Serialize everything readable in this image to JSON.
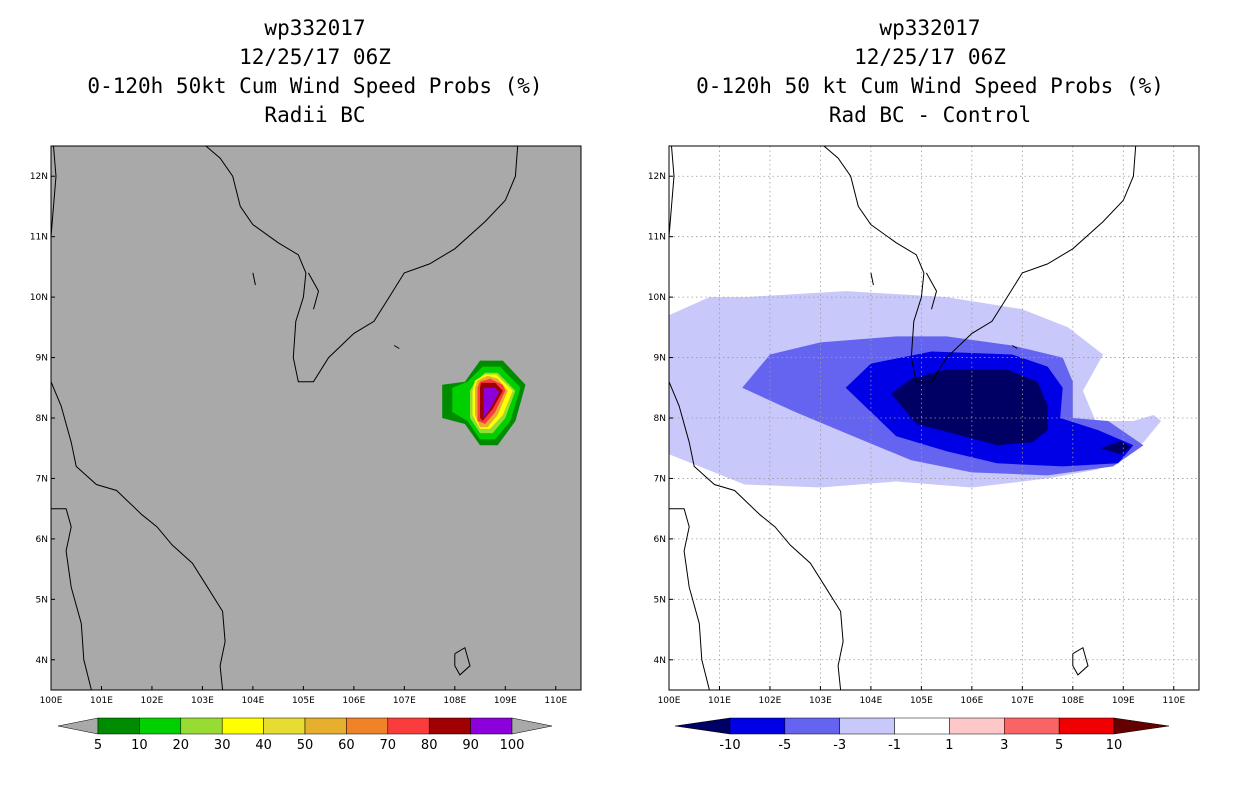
{
  "colors": {
    "left_background": "#a9a9a9",
    "right_background": "#ffffff",
    "coast": "#000000",
    "grid": "#9a9a9a"
  },
  "chart_data": [
    {
      "type": "heatmap",
      "panel": "left",
      "title_lines": [
        "wp332017",
        "12/25/17 06Z",
        "0-120h 50kt Cum Wind Speed Probs (%)",
        "Radii BC"
      ],
      "xlim": [
        100,
        110.5
      ],
      "ylim": [
        3.5,
        12.5
      ],
      "x_ticks": [
        100,
        101,
        102,
        103,
        104,
        105,
        106,
        107,
        108,
        109,
        110
      ],
      "x_tick_labels": [
        "100E",
        "101E",
        "102E",
        "103E",
        "104E",
        "105E",
        "106E",
        "107E",
        "108E",
        "109E",
        "110E"
      ],
      "y_ticks": [
        4,
        5,
        6,
        7,
        8,
        9,
        10,
        11,
        12
      ],
      "y_tick_labels": [
        "4N",
        "5N",
        "6N",
        "7N",
        "8N",
        "9N",
        "10N",
        "11N",
        "12N"
      ],
      "grid": false,
      "colorbar": {
        "labels": [
          "5",
          "10",
          "20",
          "30",
          "40",
          "50",
          "60",
          "70",
          "80",
          "90",
          "100"
        ],
        "colors": [
          "#008c00",
          "#00d000",
          "#96dc32",
          "#ffff00",
          "#e6dc32",
          "#e6af2d",
          "#f08228",
          "#fa3c3c",
          "#a00000",
          "#8c00dc"
        ],
        "under_color": "#a9a9a9",
        "over_color": "#a9a9a9"
      },
      "contours": [
        {
          "level": 5,
          "color": "#008c00",
          "points": [
            [
              108.2,
              8.6
            ],
            [
              108.5,
              8.95
            ],
            [
              108.95,
              8.95
            ],
            [
              109.4,
              8.55
            ],
            [
              109.2,
              7.95
            ],
            [
              108.85,
              7.55
            ],
            [
              108.5,
              7.55
            ],
            [
              108.2,
              7.9
            ],
            [
              107.75,
              8.0
            ],
            [
              107.75,
              8.55
            ]
          ]
        },
        {
          "level": 10,
          "color": "#00d000",
          "points": [
            [
              108.25,
              8.6
            ],
            [
              108.55,
              8.85
            ],
            [
              108.9,
              8.85
            ],
            [
              109.3,
              8.5
            ],
            [
              109.1,
              7.95
            ],
            [
              108.8,
              7.65
            ],
            [
              108.5,
              7.65
            ],
            [
              108.25,
              7.95
            ],
            [
              107.95,
              8.1
            ],
            [
              107.95,
              8.5
            ]
          ]
        },
        {
          "level": 20,
          "color": "#96dc32",
          "points": [
            [
              108.4,
              8.6
            ],
            [
              108.6,
              8.75
            ],
            [
              108.85,
              8.75
            ],
            [
              109.2,
              8.45
            ],
            [
              109.0,
              8.0
            ],
            [
              108.75,
              7.75
            ],
            [
              108.5,
              7.75
            ],
            [
              108.3,
              8.0
            ],
            [
              108.3,
              8.45
            ]
          ]
        },
        {
          "level": 30,
          "color": "#ffff00",
          "points": [
            [
              108.4,
              8.62
            ],
            [
              108.6,
              8.72
            ],
            [
              108.82,
              8.72
            ],
            [
              109.15,
              8.45
            ],
            [
              108.95,
              8.05
            ],
            [
              108.7,
              7.82
            ],
            [
              108.5,
              7.82
            ],
            [
              108.35,
              8.05
            ],
            [
              108.35,
              8.45
            ]
          ]
        },
        {
          "level": 50,
          "color": "#e6af2d",
          "points": [
            [
              108.45,
              8.62
            ],
            [
              108.65,
              8.7
            ],
            [
              108.85,
              8.65
            ],
            [
              109.05,
              8.45
            ],
            [
              108.85,
              8.05
            ],
            [
              108.65,
              7.85
            ],
            [
              108.5,
              7.85
            ],
            [
              108.4,
              8.05
            ],
            [
              108.4,
              8.5
            ]
          ]
        },
        {
          "level": 70,
          "color": "#fa3c3c",
          "points": [
            [
              108.5,
              8.6
            ],
            [
              108.7,
              8.65
            ],
            [
              108.95,
              8.55
            ],
            [
              109.0,
              8.45
            ],
            [
              108.8,
              8.1
            ],
            [
              108.6,
              7.9
            ],
            [
              108.45,
              7.95
            ],
            [
              108.45,
              8.5
            ]
          ]
        },
        {
          "level": 80,
          "color": "#a00000",
          "points": [
            [
              108.52,
              8.58
            ],
            [
              108.8,
              8.58
            ],
            [
              108.95,
              8.45
            ],
            [
              108.75,
              8.15
            ],
            [
              108.55,
              7.95
            ],
            [
              108.5,
              8.0
            ],
            [
              108.5,
              8.5
            ]
          ]
        },
        {
          "level": 90,
          "color": "#8c00dc",
          "points": [
            [
              108.57,
              8.5
            ],
            [
              108.8,
              8.5
            ],
            [
              108.88,
              8.43
            ],
            [
              108.7,
              8.15
            ],
            [
              108.57,
              8.0
            ]
          ]
        }
      ]
    },
    {
      "type": "heatmap",
      "panel": "right",
      "title_lines": [
        "wp332017",
        "12/25/17 06Z",
        "0-120h 50 kt Cum Wind Speed Probs (%)",
        "Rad BC - Control"
      ],
      "xlim": [
        100,
        110.5
      ],
      "ylim": [
        3.5,
        12.5
      ],
      "x_ticks": [
        100,
        101,
        102,
        103,
        104,
        105,
        106,
        107,
        108,
        109,
        110
      ],
      "x_tick_labels": [
        "100E",
        "101E",
        "102E",
        "103E",
        "104E",
        "105E",
        "106E",
        "107E",
        "108E",
        "109E",
        "110E"
      ],
      "y_ticks": [
        4,
        5,
        6,
        7,
        8,
        9,
        10,
        11,
        12
      ],
      "y_tick_labels": [
        "4N",
        "5N",
        "6N",
        "7N",
        "8N",
        "9N",
        "10N",
        "11N",
        "12N"
      ],
      "grid": true,
      "colorbar": {
        "labels": [
          "-10",
          "-5",
          "-3",
          "-1",
          "1",
          "3",
          "5",
          "10"
        ],
        "colors": [
          "#0000e6",
          "#6464f0",
          "#c8c8fa",
          "#ffffff",
          "#ffc8c8",
          "#fa6464",
          "#f00000"
        ],
        "under_color": "#000064",
        "over_color": "#640000"
      },
      "contours": [
        {
          "level": -1,
          "color": "#c8c8fa",
          "points": [
            [
              100.0,
              9.7
            ],
            [
              100.8,
              10.0
            ],
            [
              101.5,
              10.0
            ],
            [
              103.5,
              10.1
            ],
            [
              105.5,
              10.0
            ],
            [
              107.0,
              9.8
            ],
            [
              107.9,
              9.5
            ],
            [
              108.6,
              9.05
            ],
            [
              108.2,
              8.45
            ],
            [
              108.45,
              7.95
            ],
            [
              109.2,
              7.95
            ],
            [
              109.6,
              8.05
            ],
            [
              109.75,
              7.95
            ],
            [
              109.4,
              7.6
            ],
            [
              108.5,
              7.15
            ],
            [
              107.5,
              7.0
            ],
            [
              106.0,
              6.85
            ],
            [
              104.5,
              6.95
            ],
            [
              103.0,
              6.85
            ],
            [
              101.5,
              6.9
            ],
            [
              100.0,
              7.4
            ]
          ]
        },
        {
          "level": -3,
          "color": "#6464f0",
          "points": [
            [
              101.45,
              8.5
            ],
            [
              102.0,
              9.05
            ],
            [
              103.0,
              9.25
            ],
            [
              104.5,
              9.35
            ],
            [
              105.5,
              9.35
            ],
            [
              106.8,
              9.2
            ],
            [
              107.8,
              9.0
            ],
            [
              108.0,
              8.6
            ],
            [
              108.0,
              8.0
            ],
            [
              108.7,
              7.95
            ],
            [
              109.4,
              7.55
            ],
            [
              108.8,
              7.2
            ],
            [
              107.5,
              7.05
            ],
            [
              106.0,
              7.1
            ],
            [
              104.8,
              7.3
            ],
            [
              103.5,
              7.75
            ],
            [
              102.5,
              8.1
            ]
          ]
        },
        {
          "level": -5,
          "color": "#0000e6",
          "points": [
            [
              103.5,
              8.5
            ],
            [
              104.0,
              8.9
            ],
            [
              105.2,
              9.1
            ],
            [
              106.8,
              9.05
            ],
            [
              107.5,
              8.85
            ],
            [
              107.8,
              8.5
            ],
            [
              107.75,
              8.0
            ],
            [
              108.5,
              7.8
            ],
            [
              109.2,
              7.55
            ],
            [
              108.9,
              7.25
            ],
            [
              107.8,
              7.2
            ],
            [
              106.5,
              7.25
            ],
            [
              105.5,
              7.45
            ],
            [
              104.5,
              7.7
            ]
          ]
        },
        {
          "level": -10,
          "color": "#000064",
          "points": [
            [
              104.4,
              8.4
            ],
            [
              104.8,
              8.65
            ],
            [
              105.5,
              8.8
            ],
            [
              106.7,
              8.8
            ],
            [
              107.3,
              8.6
            ],
            [
              107.5,
              8.2
            ],
            [
              107.5,
              7.8
            ],
            [
              107.2,
              7.6
            ],
            [
              106.5,
              7.55
            ],
            [
              105.6,
              7.75
            ],
            [
              104.9,
              7.9
            ]
          ]
        },
        {
          "level": -10,
          "color": "#000064",
          "points": [
            [
              108.55,
              7.5
            ],
            [
              108.95,
              7.62
            ],
            [
              109.15,
              7.52
            ],
            [
              108.95,
              7.4
            ]
          ]
        }
      ]
    }
  ]
}
